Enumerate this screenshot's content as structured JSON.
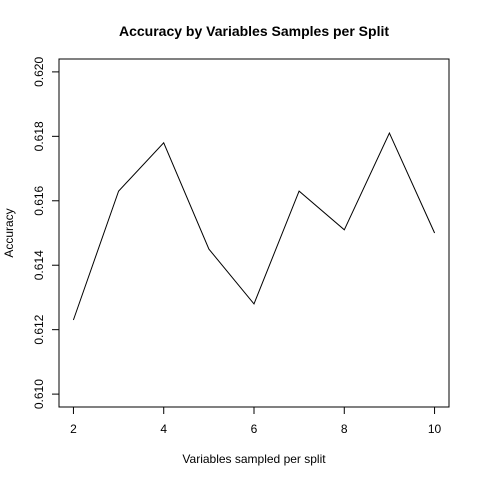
{
  "chart_data": {
    "type": "line",
    "title": "Accuracy by Variables Samples per Split",
    "xlabel": "Variables sampled per split",
    "ylabel": "Accuracy",
    "x": [
      2,
      3,
      4,
      5,
      6,
      7,
      8,
      9,
      10
    ],
    "values": [
      0.6123,
      0.6163,
      0.6178,
      0.6145,
      0.6128,
      0.6163,
      0.6151,
      0.6181,
      0.615
    ],
    "xlim": [
      1.68,
      10.32
    ],
    "ylim": [
      0.6096,
      0.6204
    ],
    "xticks": [
      "2",
      "4",
      "6",
      "8",
      "10"
    ],
    "yticks": [
      "0.610",
      "0.612",
      "0.614",
      "0.616",
      "0.618",
      "0.620"
    ],
    "grid": false,
    "legend": "none",
    "line_color": "#000000"
  }
}
